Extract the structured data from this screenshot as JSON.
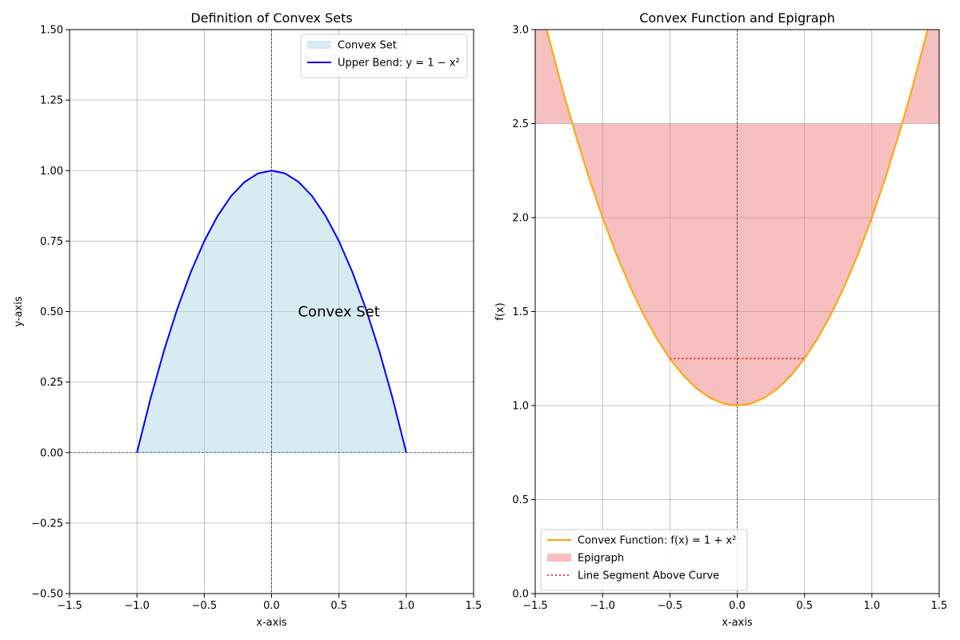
{
  "chart_data": [
    {
      "type": "area",
      "title": "Definition of Convex Sets",
      "xlabel": "x-axis",
      "ylabel": "y-axis",
      "xlim": [
        -1.5,
        1.5
      ],
      "ylim": [
        -0.5,
        1.5
      ],
      "xticks": [
        -1.5,
        -1.0,
        -0.5,
        0.0,
        0.5,
        1.0,
        1.5
      ],
      "xtick_labels": [
        "−1.5",
        "−1.0",
        "−0.5",
        "0.0",
        "0.5",
        "1.0",
        "1.5"
      ],
      "yticks": [
        -0.5,
        -0.25,
        0.0,
        0.25,
        0.5,
        0.75,
        1.0,
        1.25,
        1.5
      ],
      "ytick_labels": [
        "−0.50",
        "−0.25",
        "0.00",
        "0.25",
        "0.50",
        "0.75",
        "1.00",
        "1.25",
        "1.50"
      ],
      "grid": true,
      "legend_position": "top-right",
      "series": [
        {
          "name": "Convex Set",
          "kind": "fill",
          "color": "#add8e6",
          "opacity": 0.5,
          "x": [
            -1.0,
            -0.9,
            -0.8,
            -0.7,
            -0.6,
            -0.5,
            -0.4,
            -0.3,
            -0.2,
            -0.1,
            0.0,
            0.1,
            0.2,
            0.3,
            0.4,
            0.5,
            0.6,
            0.7,
            0.8,
            0.9,
            1.0
          ],
          "y": [
            0.0,
            0.19,
            0.36,
            0.51,
            0.64,
            0.75,
            0.84,
            0.91,
            0.96,
            0.99,
            1.0,
            0.99,
            0.96,
            0.91,
            0.84,
            0.75,
            0.64,
            0.51,
            0.36,
            0.19,
            0.0
          ]
        },
        {
          "name": "Upper Bend: y = 1 − x²",
          "kind": "line",
          "color": "#0000ff",
          "x": [
            -1.0,
            -0.9,
            -0.8,
            -0.7,
            -0.6,
            -0.5,
            -0.4,
            -0.3,
            -0.2,
            -0.1,
            0.0,
            0.1,
            0.2,
            0.3,
            0.4,
            0.5,
            0.6,
            0.7,
            0.8,
            0.9,
            1.0
          ],
          "y": [
            0.0,
            0.19,
            0.36,
            0.51,
            0.64,
            0.75,
            0.84,
            0.91,
            0.96,
            0.99,
            1.0,
            0.99,
            0.96,
            0.91,
            0.84,
            0.75,
            0.64,
            0.51,
            0.36,
            0.19,
            0.0
          ]
        }
      ],
      "reference_lines": {
        "x": 0.0,
        "y": 0.0,
        "color": "#000000",
        "style": "dashed"
      },
      "annotations": [
        {
          "text": "Convex Set",
          "x": 0.5,
          "y": 0.5
        }
      ]
    },
    {
      "type": "line",
      "title": "Convex Function and Epigraph",
      "xlabel": "x-axis",
      "ylabel": "f(x)",
      "xlim": [
        -1.5,
        1.5
      ],
      "ylim": [
        0.0,
        3.0
      ],
      "xticks": [
        -1.5,
        -1.0,
        -0.5,
        0.0,
        0.5,
        1.0,
        1.5
      ],
      "xtick_labels": [
        "−1.5",
        "−1.0",
        "−0.5",
        "0.0",
        "0.5",
        "1.0",
        "1.5"
      ],
      "yticks": [
        0.0,
        0.5,
        1.0,
        1.5,
        2.0,
        2.5,
        3.0
      ],
      "ytick_labels": [
        "0.0",
        "0.5",
        "1.0",
        "1.5",
        "2.0",
        "2.5",
        "3.0"
      ],
      "grid": true,
      "legend_position": "bottom-left",
      "series": [
        {
          "name": "Convex Function: f(x) = 1 + x²",
          "kind": "line",
          "color": "#ffa500",
          "x": [
            -1.5,
            -1.4,
            -1.3,
            -1.2,
            -1.1,
            -1.0,
            -0.9,
            -0.8,
            -0.7,
            -0.6,
            -0.5,
            -0.4,
            -0.3,
            -0.2,
            -0.1,
            0.0,
            0.1,
            0.2,
            0.3,
            0.4,
            0.5,
            0.6,
            0.7,
            0.8,
            0.9,
            1.0,
            1.1,
            1.2,
            1.3,
            1.4,
            1.5
          ],
          "y": [
            3.25,
            2.96,
            2.69,
            2.44,
            2.21,
            2.0,
            1.81,
            1.64,
            1.49,
            1.36,
            1.25,
            1.16,
            1.09,
            1.04,
            1.01,
            1.0,
            1.01,
            1.04,
            1.09,
            1.16,
            1.25,
            1.36,
            1.49,
            1.64,
            1.81,
            2.0,
            2.21,
            2.44,
            2.69,
            2.96,
            3.25
          ]
        },
        {
          "name": "Epigraph",
          "kind": "fill_between",
          "color": "#f08080",
          "opacity": 0.5,
          "x": [
            -1.5,
            -1.4,
            -1.3,
            -1.2,
            -1.1,
            -1.0,
            -0.9,
            -0.8,
            -0.7,
            -0.6,
            -0.5,
            -0.4,
            -0.3,
            -0.2,
            -0.1,
            0.0,
            0.1,
            0.2,
            0.3,
            0.4,
            0.5,
            0.6,
            0.7,
            0.8,
            0.9,
            1.0,
            1.1,
            1.2,
            1.3,
            1.4,
            1.5
          ],
          "y": [
            3.25,
            2.96,
            2.69,
            2.44,
            2.21,
            2.0,
            1.81,
            1.64,
            1.49,
            1.36,
            1.25,
            1.16,
            1.09,
            1.04,
            1.01,
            1.0,
            1.01,
            1.04,
            1.09,
            1.16,
            1.25,
            1.36,
            1.49,
            1.64,
            1.81,
            2.0,
            2.21,
            2.44,
            2.69,
            2.96,
            3.25
          ],
          "y2": 2.5
        },
        {
          "name": "Line Segment Above Curve",
          "kind": "dotted",
          "color": "#ff0000",
          "x": [
            -0.5,
            0.5
          ],
          "y": [
            1.25,
            1.25
          ]
        }
      ],
      "reference_lines": {
        "x": 0.0,
        "color": "#000000",
        "style": "dashed"
      }
    }
  ]
}
